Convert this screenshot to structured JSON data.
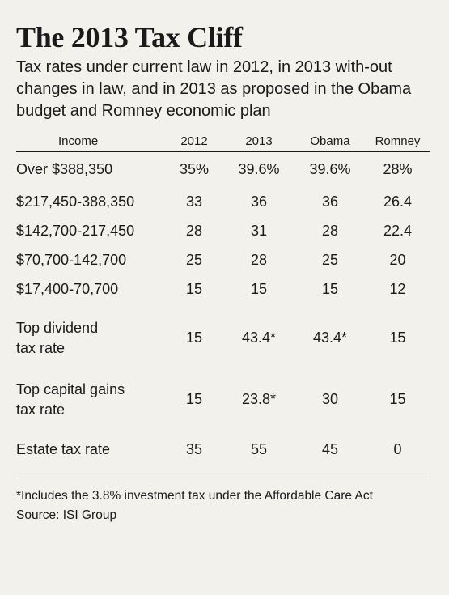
{
  "title": "The 2013 Tax Cliff",
  "subtitle": "Tax rates under current law in 2012, in 2013 with-out changes in law, and in 2013 as proposed in the Obama budget and Romney economic plan",
  "table": {
    "headers": [
      "Income",
      "2012",
      "2013",
      "Obama",
      "Romney"
    ],
    "rows": [
      {
        "label": "Over $388,350",
        "c2012": "35%",
        "c2013": "39.6%",
        "obama": "39.6%",
        "romney": "28%"
      },
      {
        "label": "$217,450-388,350",
        "c2012": "33",
        "c2013": "36",
        "obama": "36",
        "romney": "26.4"
      },
      {
        "label": "$142,700-217,450",
        "c2012": "28",
        "c2013": "31",
        "obama": "28",
        "romney": "22.4"
      },
      {
        "label": "$70,700-142,700",
        "c2012": "25",
        "c2013": "28",
        "obama": "25",
        "romney": "20"
      },
      {
        "label": "$17,400-70,700",
        "c2012": "15",
        "c2013": "15",
        "obama": "15",
        "romney": "12"
      },
      {
        "label_line1": "Top dividend",
        "label_line2": "tax rate",
        "c2012": "15",
        "c2013": "43.4*",
        "obama": "43.4*",
        "romney": "15"
      },
      {
        "label_line1": "Top capital gains",
        "label_line2": "tax rate",
        "c2012": "15",
        "c2013": "23.8*",
        "obama": "30",
        "romney": "15"
      },
      {
        "label": "Estate tax rate",
        "c2012": "35",
        "c2013": "55",
        "obama": "45",
        "romney": "0"
      }
    ]
  },
  "footnote": "*Includes the 3.8% investment tax under the Affordable Care Act",
  "source": "Source: ISI Group"
}
